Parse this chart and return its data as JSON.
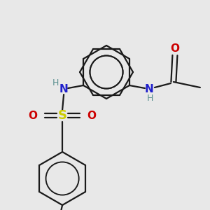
{
  "background_color": "#e8e8e8",
  "bond_color": "#1a1a1a",
  "atom_colors": {
    "N": "#2020cc",
    "O": "#cc0000",
    "S": "#cccc00",
    "H": "#5a9090",
    "C": "#1a1a1a"
  },
  "figsize": [
    3.0,
    3.0
  ],
  "dpi": 100,
  "lw": 1.6
}
